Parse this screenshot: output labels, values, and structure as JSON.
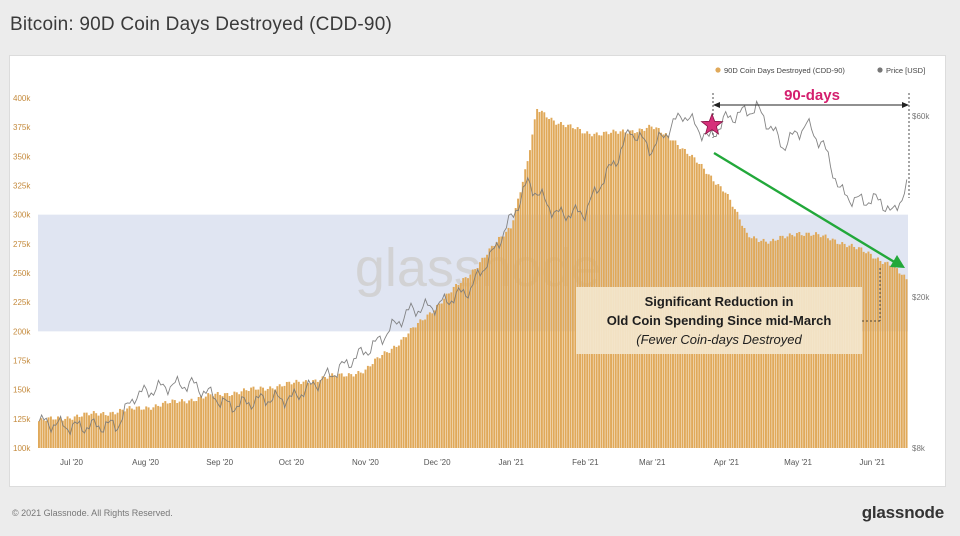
{
  "page": {
    "title": "Bitcoin: 90D Coin Days Destroyed (CDD-90)",
    "copyright": "© 2021 Glassnode. All Rights Reserved.",
    "brand": "glassnode"
  },
  "colors": {
    "bars": "#e0a95a",
    "price": "#909090",
    "band": "#d6dcee",
    "arrow": "#22a83a",
    "star": "#d6307a",
    "days_label": "#d41f6e",
    "annotation_bg": "#f3e6cc"
  },
  "chart_data": {
    "type": "bar",
    "watermark": "glassnode",
    "legend": {
      "position": "top-right",
      "entries": [
        "90D Coin Days Destroyed (CDD-90)",
        "Price [USD]"
      ]
    },
    "x_ticks": [
      "Jul '20",
      "Aug '20",
      "Sep '20",
      "Oct '20",
      "Nov '20",
      "Dec '20",
      "Jan '21",
      "Feb '21",
      "Mar '21",
      "Apr '21",
      "May '21",
      "Jun '21"
    ],
    "y_left": {
      "ylim": [
        100000,
        400000
      ],
      "ticks": [
        100000,
        125000,
        150000,
        175000,
        200000,
        225000,
        250000,
        275000,
        300000,
        325000,
        350000,
        375000,
        400000
      ],
      "tick_labels": [
        "100k",
        "125k",
        "150k",
        "175k",
        "200k",
        "225k",
        "250k",
        "275k",
        "300k",
        "325k",
        "350k",
        "375k",
        "400k"
      ]
    },
    "y_right": {
      "scale": "log",
      "ticks": [
        8000,
        20000,
        60000
      ],
      "tick_labels": [
        "$8k",
        "$20k",
        "$60k"
      ]
    },
    "highlight_band": [
      200000,
      300000
    ],
    "series": [
      {
        "name": "90D Coin Days Destroyed (CDD-90)",
        "type": "bar",
        "x": [
          "2020-06-17",
          "2020-07-01",
          "2020-07-15",
          "2020-08-01",
          "2020-08-15",
          "2020-09-01",
          "2020-09-15",
          "2020-10-01",
          "2020-10-15",
          "2020-11-01",
          "2020-11-08",
          "2020-11-15",
          "2020-12-01",
          "2020-12-15",
          "2021-01-01",
          "2021-01-08",
          "2021-01-12",
          "2021-01-20",
          "2021-02-01",
          "2021-02-15",
          "2021-03-01",
          "2021-03-10",
          "2021-03-20",
          "2021-04-01",
          "2021-04-10",
          "2021-04-20",
          "2021-05-01",
          "2021-05-15",
          "2021-06-01",
          "2021-06-10",
          "2021-06-16"
        ],
        "values": [
          123000,
          127000,
          130000,
          135000,
          140000,
          146000,
          150000,
          155000,
          160000,
          166000,
          180000,
          190000,
          222000,
          250000,
          290000,
          345000,
          390000,
          380000,
          370000,
          370000,
          375000,
          365000,
          345000,
          320000,
          283000,
          276000,
          285000,
          280000,
          266000,
          256000,
          244000
        ]
      },
      {
        "name": "Price [USD]",
        "type": "line",
        "x": [
          "2020-06-17",
          "2020-07-01",
          "2020-07-20",
          "2020-07-27",
          "2020-08-10",
          "2020-08-20",
          "2020-09-05",
          "2020-09-20",
          "2020-10-01",
          "2020-10-20",
          "2020-11-05",
          "2020-11-20",
          "2020-12-01",
          "2020-12-15",
          "2020-12-25",
          "2021-01-02",
          "2021-01-08",
          "2021-01-20",
          "2021-02-01",
          "2021-02-15",
          "2021-02-20",
          "2021-03-01",
          "2021-03-10",
          "2021-03-14",
          "2021-03-25",
          "2021-04-01",
          "2021-04-14",
          "2021-04-25",
          "2021-05-05",
          "2021-05-12",
          "2021-05-19",
          "2021-05-25",
          "2021-06-05",
          "2021-06-10",
          "2021-06-16"
        ],
        "values": [
          9400,
          9100,
          9200,
          11000,
          11700,
          11800,
          10300,
          10800,
          10800,
          12800,
          15000,
          18500,
          19000,
          21000,
          26500,
          33000,
          40000,
          33000,
          33500,
          47000,
          55000,
          49000,
          57000,
          61000,
          52000,
          59000,
          63000,
          50000,
          57000,
          50000,
          38000,
          36000,
          36000,
          33000,
          39000
        ]
      }
    ],
    "annotations": {
      "span_label": "90-days",
      "text_line1": "Significant Reduction in",
      "text_line2": "Old Coin Spending Since mid-March",
      "text_line3": "(Fewer Coin-days Destroyed"
    }
  }
}
